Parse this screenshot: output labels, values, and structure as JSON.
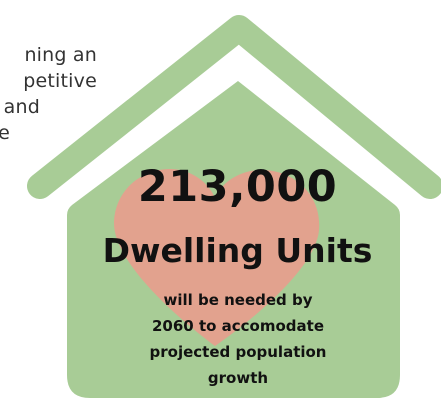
{
  "background_text": {
    "line1": "ning an",
    "line2": "petitive",
    "line3": "and",
    "line4": "e"
  },
  "infographic": {
    "number": "213,000",
    "label": "Dwelling Units",
    "caption_line1": "will be needed by",
    "caption_line2": "2060 to accomodate",
    "caption_line3": "projected population",
    "caption_line4": "growth"
  },
  "colors": {
    "house_green": "#a8cc96",
    "heart_pink": "#e2a28e",
    "text_dark": "#111111"
  }
}
